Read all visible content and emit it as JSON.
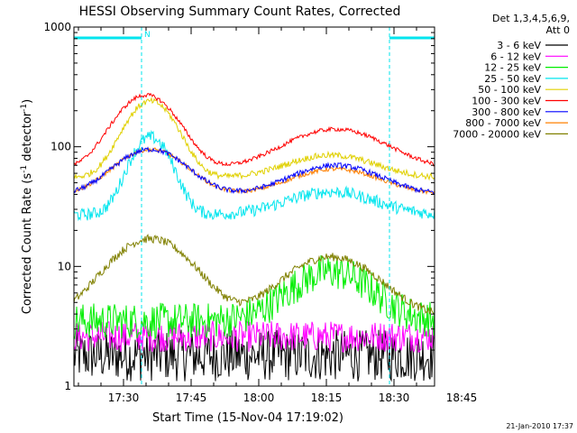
{
  "chart_data": {
    "type": "line",
    "title": "HESSI Observing Summary Count Rates, Corrected",
    "xlabel": "Start Time (15-Nov-04 17:19:02)",
    "ylabel_main": "Corrected Count Rate (s",
    "ylabel_sup1": "-1",
    "ylabel_mid": " detector",
    "ylabel_sup2": "-1",
    "ylabel_end": ")",
    "yscale": "log",
    "ylim": [
      1,
      1000
    ],
    "xlim_minutes": [
      0,
      80
    ],
    "x_unit": "minutes after 17:19:02",
    "x_ticks": [
      {
        "label": "17:30",
        "minute": 11.0
      },
      {
        "label": "17:45",
        "minute": 26.0
      },
      {
        "label": "18:00",
        "minute": 41.0
      },
      {
        "label": "18:15",
        "minute": 56.0
      },
      {
        "label": "18:30",
        "minute": 71.0
      },
      {
        "label": "18:45",
        "minute": 86.0
      }
    ],
    "y_tick_labels": [
      {
        "label": "1",
        "value": 1
      },
      {
        "label": "10",
        "value": 10
      },
      {
        "label": "100",
        "value": 100
      },
      {
        "label": "1000",
        "value": 1000
      }
    ],
    "legend_header": [
      "Det 1,3,4,5,6,9,",
      "Att 0"
    ],
    "legend_position": "right",
    "night_bar_color": "#00e5ee",
    "night_marker": "N",
    "night_intervals_minutes": [
      [
        0,
        15
      ],
      [
        70,
        80
      ]
    ],
    "attenuator_markers_minutes": [
      15,
      70,
      80
    ],
    "series": [
      {
        "name": "3 - 6 keV",
        "color": "#000000",
        "baseline": 1.8,
        "peaks": [],
        "noise": 0.5
      },
      {
        "name": "6 - 12 keV",
        "color": "#ff00ff",
        "baseline": 2.6,
        "peaks": [],
        "noise": 0.3
      },
      {
        "name": "12 - 25 keV",
        "color": "#00ee00",
        "baseline": 3.5,
        "peaks": [
          {
            "t": 57,
            "v": 9,
            "w": 8
          }
        ],
        "noise": 0.35
      },
      {
        "name": "25 - 50 keV",
        "color": "#00e5ee",
        "baseline": 27,
        "peaks": [
          {
            "t": 17,
            "v": 120,
            "w": 4
          },
          {
            "t": 57,
            "v": 42,
            "w": 9
          }
        ],
        "noise": 0.12
      },
      {
        "name": "50 - 100 keV",
        "color": "#e0d000",
        "baseline": 55,
        "peaks": [
          {
            "t": 17,
            "v": 240,
            "w": 5
          },
          {
            "t": 57,
            "v": 85,
            "w": 9
          }
        ],
        "noise": 0.06
      },
      {
        "name": "100 - 300 keV",
        "color": "#ff0000",
        "baseline": 65,
        "peaks": [
          {
            "t": 16,
            "v": 270,
            "w": 6
          },
          {
            "t": 58,
            "v": 140,
            "w": 10
          }
        ],
        "noise": 0.04
      },
      {
        "name": "300 - 800 keV",
        "color": "#0000ff",
        "baseline": 40,
        "peaks": [
          {
            "t": 17,
            "v": 95,
            "w": 7
          },
          {
            "t": 58,
            "v": 70,
            "w": 9
          }
        ],
        "noise": 0.05
      },
      {
        "name": "800 - 7000 keV",
        "color": "#ff8000",
        "baseline": 40,
        "peaks": [
          {
            "t": 17,
            "v": 95,
            "w": 7
          },
          {
            "t": 58,
            "v": 65,
            "w": 9
          }
        ],
        "noise": 0.04
      },
      {
        "name": "7000 - 20000 keV",
        "color": "#808000",
        "baseline": 3.8,
        "peaks": [
          {
            "t": 17,
            "v": 17,
            "w": 8
          },
          {
            "t": 57,
            "v": 12,
            "w": 9
          }
        ],
        "noise": 0.08
      }
    ]
  },
  "footer": {
    "timestamp": "21-Jan-2010 17:37"
  }
}
